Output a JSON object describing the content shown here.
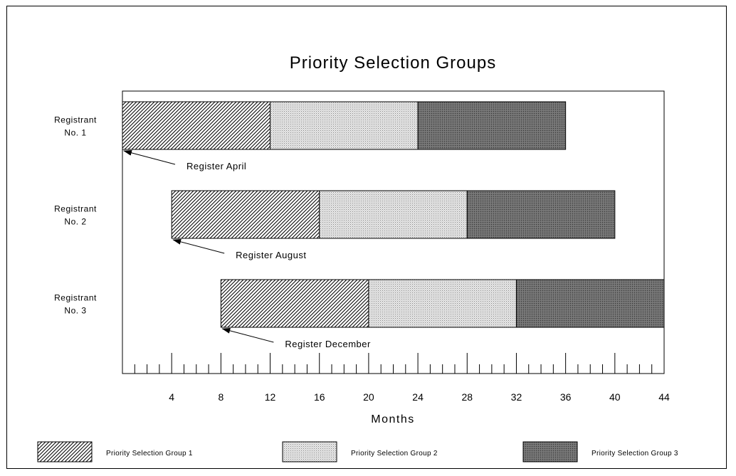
{
  "chart_data": {
    "type": "bar",
    "orientation": "horizontal-stacked",
    "title": "Priority Selection Groups",
    "xlabel": "Months",
    "ylabel": "",
    "xlim": [
      0,
      44
    ],
    "x_ticks": [
      4,
      8,
      12,
      16,
      20,
      24,
      28,
      32,
      36,
      40,
      44
    ],
    "minor_tick_step": 1,
    "categories": [
      {
        "lines": [
          "Registrant",
          "No. 1"
        ]
      },
      {
        "lines": [
          "Registrant",
          "No. 2"
        ]
      },
      {
        "lines": [
          "Registrant",
          "No. 3"
        ]
      }
    ],
    "bars": [
      {
        "start": 0,
        "segments": [
          {
            "group": 0,
            "from": 0,
            "to": 12
          },
          {
            "group": 1,
            "from": 12,
            "to": 24
          },
          {
            "group": 2,
            "from": 24,
            "to": 36
          }
        ]
      },
      {
        "start": 4,
        "segments": [
          {
            "group": 0,
            "from": 4,
            "to": 16
          },
          {
            "group": 1,
            "from": 16,
            "to": 28
          },
          {
            "group": 2,
            "from": 28,
            "to": 40
          }
        ]
      },
      {
        "start": 8,
        "segments": [
          {
            "group": 0,
            "from": 8,
            "to": 20
          },
          {
            "group": 1,
            "from": 20,
            "to": 32
          },
          {
            "group": 2,
            "from": 32,
            "to": 44
          }
        ]
      }
    ],
    "annotations": [
      {
        "bar": 0,
        "text": "Register April",
        "x": 0
      },
      {
        "bar": 1,
        "text": "Register August",
        "x": 4
      },
      {
        "bar": 2,
        "text": "Register December",
        "x": 8
      }
    ],
    "series": [
      {
        "name": "Priority Selection Group 1",
        "pattern": "diagonal-hatch"
      },
      {
        "name": "Priority Selection Group 2",
        "pattern": "light-dots"
      },
      {
        "name": "Priority Selection Group 3",
        "pattern": "dark-dots"
      }
    ],
    "legend": "bottom",
    "grid": false
  }
}
